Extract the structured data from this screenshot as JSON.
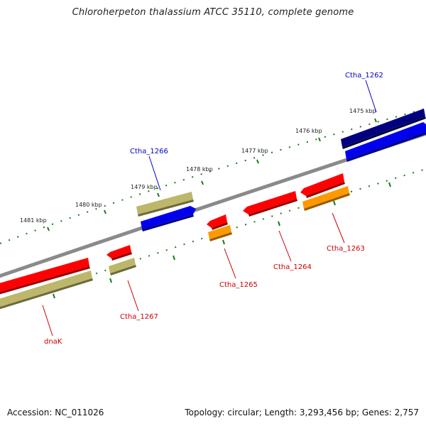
{
  "header": {
    "title": "Chloroherpeton thalassium ATCC 35110, complete genome"
  },
  "footer": {
    "accession": "Accession: NC_011026",
    "summary": "Topology: circular; Length: 3,293,456 bp; Genes: 2,757"
  },
  "map": {
    "kbp_labels": [
      "1475 kbp",
      "1476 kbp",
      "1477 kbp",
      "1478 kbp",
      "1479 kbp",
      "1480 kbp",
      "1481 kbp"
    ],
    "gene_labels": [
      "Ctha_1262",
      "Ctha_1266",
      "Ctha_1263",
      "Ctha_1264",
      "Ctha_1265",
      "Ctha_1267",
      "dnaK"
    ],
    "colors": {
      "backbone": "#808080",
      "tick": "#1a7a1a",
      "forward_gene": "#0000ee",
      "forward_gene_dark": "#000080",
      "reverse_gene": "#ff0000",
      "orange_gene": "#ff9900",
      "khaki_gene": "#bdb76b",
      "label_forward": "#0000cc",
      "label_reverse": "#cc0000"
    }
  }
}
